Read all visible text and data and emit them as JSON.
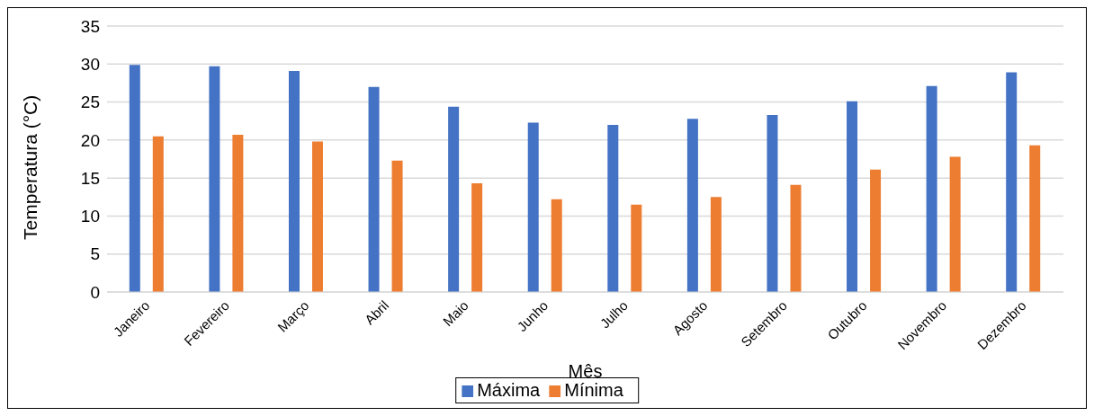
{
  "chart_data": {
    "type": "bar",
    "xlabel": "Mês",
    "ylabel": "Temperatura (°C)",
    "categories": [
      "Janeiro",
      "Fevereiro",
      "Março",
      "Abril",
      "Maio",
      "Junho",
      "Julho",
      "Agosto",
      "Setembro",
      "Outubro",
      "Novembro",
      "Dezembro"
    ],
    "series": [
      {
        "name": "Máxima",
        "color": "#4472c4",
        "values": [
          29.9,
          29.7,
          29.1,
          27.0,
          24.4,
          22.3,
          22.0,
          22.8,
          23.3,
          25.1,
          27.1,
          28.9
        ]
      },
      {
        "name": "Mínima",
        "color": "#ed7d31",
        "values": [
          20.5,
          20.7,
          19.8,
          17.3,
          14.3,
          12.2,
          11.5,
          12.5,
          14.1,
          16.1,
          17.8,
          19.3
        ]
      }
    ],
    "ylim": [
      0,
      35
    ],
    "yticks": [
      0,
      5,
      10,
      15,
      20,
      25,
      30,
      35
    ],
    "grid": "y",
    "legend": "bottom"
  }
}
